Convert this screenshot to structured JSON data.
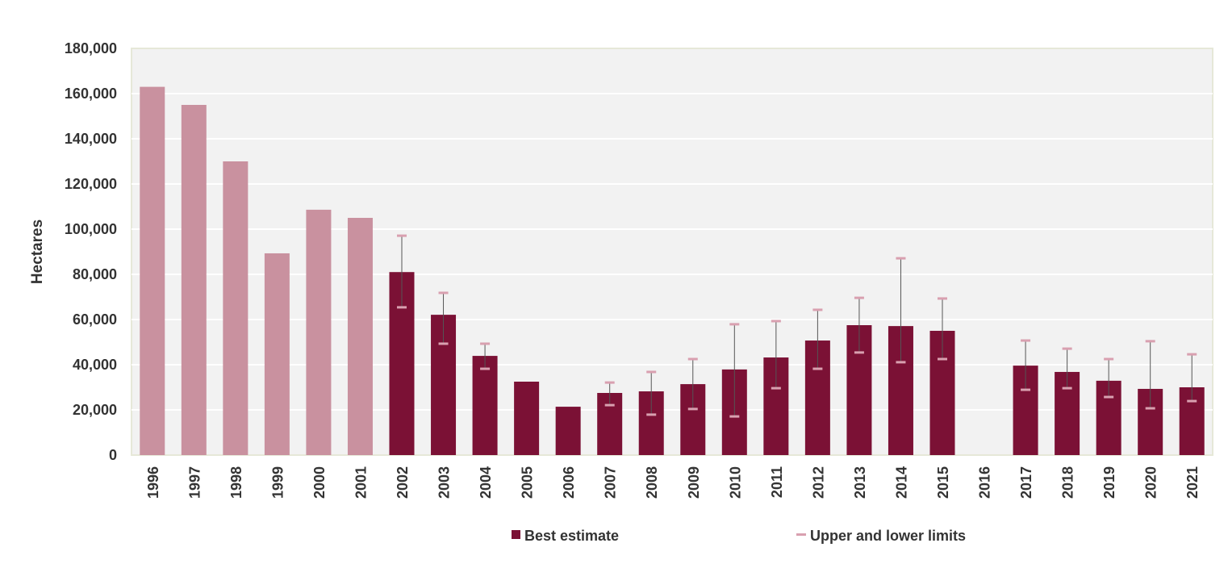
{
  "chart_data": {
    "type": "bar",
    "title": "",
    "xlabel": "",
    "ylabel": "Hectares",
    "ylim": [
      0,
      180000
    ],
    "yticks": [
      0,
      20000,
      40000,
      60000,
      80000,
      100000,
      120000,
      140000,
      160000,
      180000
    ],
    "ytick_labels": [
      "0",
      "20,000",
      "40,000",
      "60,000",
      "80,000",
      "100,000",
      "120,000",
      "140,000",
      "160,000",
      "180,000"
    ],
    "grid": true,
    "legend_position": "bottom",
    "categories": [
      "1996",
      "1997",
      "1998",
      "1999",
      "2000",
      "2001",
      "2002",
      "2003",
      "2004",
      "2005",
      "2006",
      "2007",
      "2008",
      "2009",
      "2010",
      "2011",
      "2012",
      "2013",
      "2014",
      "2015",
      "2016",
      "2017",
      "2018",
      "2019",
      "2020",
      "2021"
    ],
    "series": [
      {
        "name": "Best estimate",
        "values": [
          163000,
          155000,
          130000,
          89300,
          108600,
          105000,
          81000,
          62100,
          43900,
          32500,
          21400,
          27500,
          28200,
          31400,
          37900,
          43200,
          50700,
          57500,
          57100,
          55000,
          null,
          39600,
          36800,
          32900,
          29300,
          30000
        ],
        "early_years_color": "#c9919f",
        "color": "#7b1135"
      },
      {
        "name": "Upper and lower limits",
        "upper": [
          null,
          null,
          null,
          null,
          null,
          null,
          97100,
          71800,
          49300,
          null,
          null,
          32100,
          36800,
          42500,
          57900,
          59300,
          64300,
          69600,
          87100,
          69300,
          null,
          50700,
          47100,
          42500,
          50400,
          44600
        ],
        "lower": [
          null,
          null,
          null,
          null,
          null,
          null,
          65400,
          49300,
          38200,
          null,
          null,
          22100,
          17900,
          20400,
          17100,
          29600,
          38200,
          45400,
          41100,
          42500,
          null,
          28900,
          29600,
          25700,
          20700,
          23900
        ],
        "color": "#d9a0b0"
      }
    ],
    "colors": {
      "plot_background": "#f2f2f2",
      "gridline": "#ffffff",
      "whisker": "#555555"
    }
  }
}
